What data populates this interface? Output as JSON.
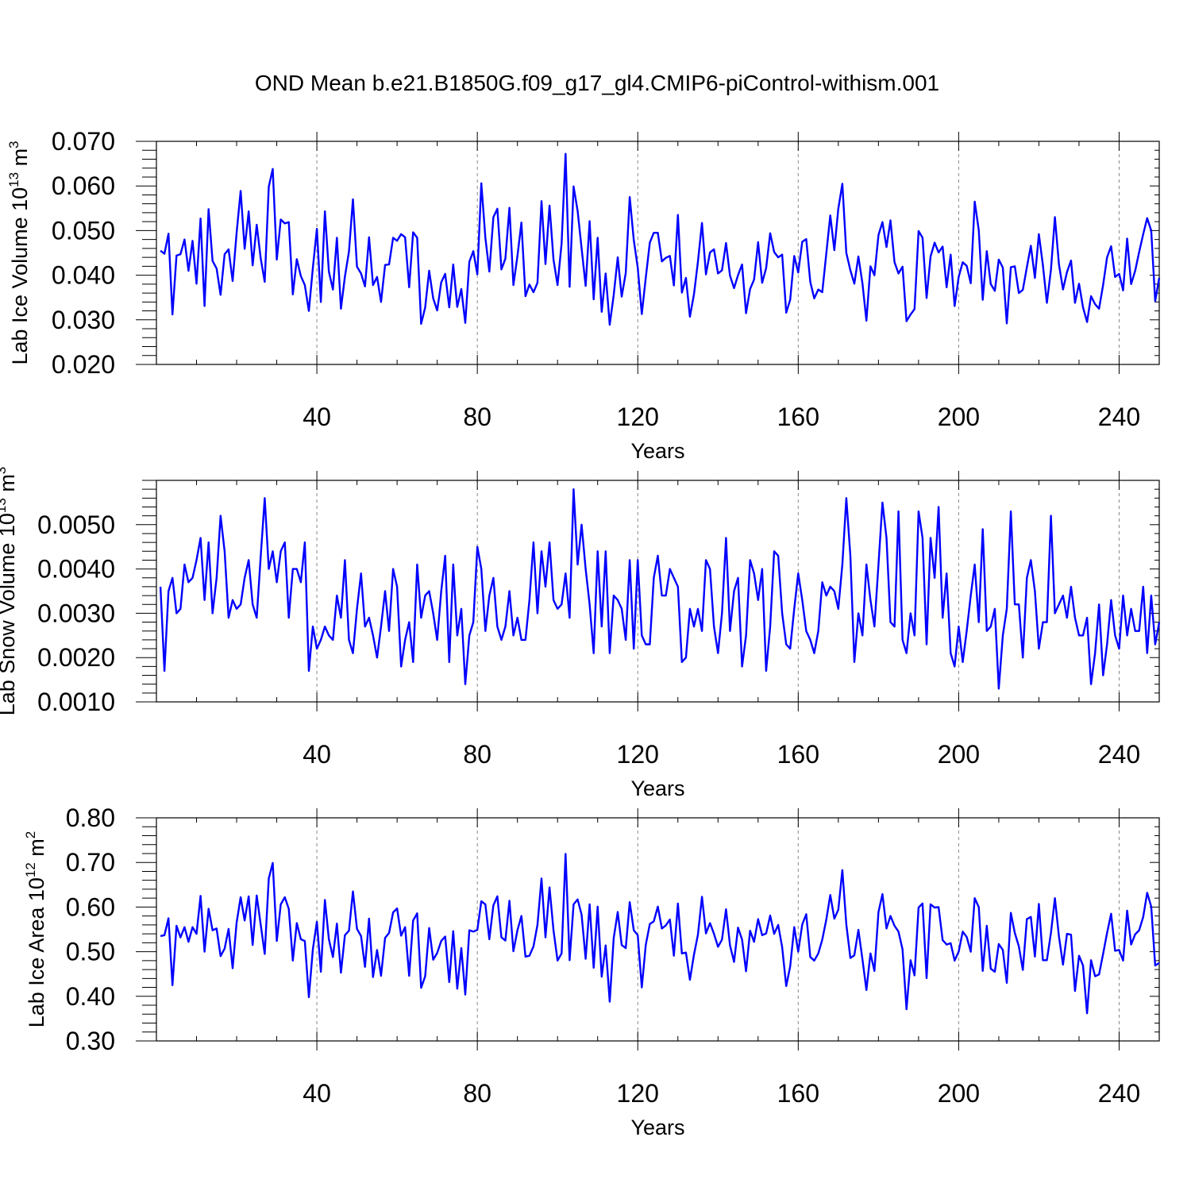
{
  "title": "OND Mean b.e21.B1850G.f09_g17_gl4.CMIP6-piControl-withism.001",
  "series_color": "#0000ff",
  "chart_data": [
    {
      "type": "line",
      "title": "OND Mean b.e21.B1850G.f09_g17_gl4.CMIP6-piControl-withism.001",
      "xlabel": "Years",
      "ylabel_text": "Lab Ice Volume 10",
      "ylabel_exp": "13",
      "ylabel_unit": " m",
      "ylabel_unit_exp": "3",
      "xlim": [
        0,
        250
      ],
      "ylim": [
        0.02,
        0.07
      ],
      "xticks": [
        40,
        80,
        120,
        160,
        200,
        240
      ],
      "yticks": [
        "0.020",
        "0.030",
        "0.040",
        "0.050",
        "0.060",
        "0.070"
      ],
      "grid": "vertical dashed at major x ticks",
      "x_start": 1,
      "values": [
        0.0455,
        0.0448,
        0.0493,
        0.0312,
        0.0444,
        0.0447,
        0.048,
        0.041,
        0.0477,
        0.0381,
        0.0527,
        0.0331,
        0.0548,
        0.0432,
        0.0415,
        0.0356,
        0.0447,
        0.0458,
        0.0387,
        0.0495,
        0.0589,
        0.0459,
        0.0543,
        0.0422,
        0.0513,
        0.0437,
        0.0385,
        0.0598,
        0.0638,
        0.0435,
        0.0525,
        0.0516,
        0.0519,
        0.0357,
        0.0436,
        0.0398,
        0.0378,
        0.032,
        0.0416,
        0.0504,
        0.034,
        0.0543,
        0.0408,
        0.0368,
        0.0484,
        0.0325,
        0.0397,
        0.0453,
        0.057,
        0.0419,
        0.0404,
        0.0375,
        0.0485,
        0.0378,
        0.0396,
        0.034,
        0.0423,
        0.0424,
        0.0484,
        0.0477,
        0.0492,
        0.0485,
        0.0373,
        0.0496,
        0.0484,
        0.0291,
        0.0328,
        0.041,
        0.0348,
        0.0321,
        0.0384,
        0.0403,
        0.0328,
        0.0424,
        0.0329,
        0.0369,
        0.0293,
        0.043,
        0.0454,
        0.0402,
        0.0606,
        0.0484,
        0.0408,
        0.053,
        0.0549,
        0.0413,
        0.0437,
        0.0551,
        0.0378,
        0.0443,
        0.0518,
        0.0353,
        0.0379,
        0.0362,
        0.0383,
        0.0566,
        0.0425,
        0.0556,
        0.0435,
        0.0378,
        0.0471,
        0.0672,
        0.0374,
        0.0599,
        0.0544,
        0.046,
        0.0376,
        0.0521,
        0.0346,
        0.0484,
        0.0318,
        0.0404,
        0.0289,
        0.0355,
        0.044,
        0.0352,
        0.0405,
        0.0575,
        0.0479,
        0.0417,
        0.0313,
        0.0394,
        0.0473,
        0.0495,
        0.0495,
        0.0431,
        0.0439,
        0.0443,
        0.0377,
        0.0535,
        0.0361,
        0.0394,
        0.0307,
        0.0357,
        0.043,
        0.0517,
        0.0402,
        0.0451,
        0.0458,
        0.0404,
        0.0411,
        0.0472,
        0.0399,
        0.0371,
        0.04,
        0.0424,
        0.0315,
        0.0369,
        0.039,
        0.0474,
        0.0383,
        0.0416,
        0.0494,
        0.0452,
        0.044,
        0.0446,
        0.0316,
        0.0345,
        0.0443,
        0.0406,
        0.0475,
        0.0481,
        0.0385,
        0.0348,
        0.0368,
        0.0362,
        0.0449,
        0.0534,
        0.0456,
        0.0549,
        0.0605,
        0.045,
        0.0411,
        0.0381,
        0.0442,
        0.0382,
        0.0298,
        0.042,
        0.04,
        0.049,
        0.0519,
        0.0463,
        0.0523,
        0.0429,
        0.0404,
        0.0419,
        0.0297,
        0.0312,
        0.0324,
        0.0499,
        0.0484,
        0.0349,
        0.0442,
        0.0473,
        0.0451,
        0.0464,
        0.0373,
        0.0446,
        0.0331,
        0.0396,
        0.0429,
        0.0421,
        0.0382,
        0.0565,
        0.0501,
        0.0345,
        0.0454,
        0.038,
        0.0365,
        0.0435,
        0.0417,
        0.0292,
        0.0418,
        0.042,
        0.036,
        0.0367,
        0.0418,
        0.0466,
        0.0394,
        0.0492,
        0.0422,
        0.0338,
        0.0412,
        0.053,
        0.0424,
        0.0368,
        0.0407,
        0.0433,
        0.0338,
        0.0381,
        0.0328,
        0.0295,
        0.0353,
        0.0335,
        0.0325,
        0.0378,
        0.044,
        0.0465,
        0.0396,
        0.0403,
        0.0366,
        0.0482,
        0.038,
        0.041,
        0.0452,
        0.0492,
        0.0528,
        0.05,
        0.0342,
        0.0394
      ]
    },
    {
      "type": "line",
      "xlabel": "Years",
      "ylabel_text": "Lab Snow Volume 10",
      "ylabel_exp": "13",
      "ylabel_unit": " m",
      "ylabel_unit_exp": "3",
      "xlim": [
        0,
        250
      ],
      "ylim": [
        0.001,
        0.006
      ],
      "xticks": [
        40,
        80,
        120,
        160,
        200,
        240
      ],
      "yticks": [
        "0.0010",
        "0.0020",
        "0.0030",
        "0.0040",
        "0.0050"
      ],
      "grid": "vertical dashed at major x ticks",
      "x_start": 1,
      "values": [
        0.0036,
        0.0017,
        0.0035,
        0.0038,
        0.003,
        0.0031,
        0.0041,
        0.0037,
        0.0038,
        0.0042,
        0.0047,
        0.0033,
        0.0046,
        0.003,
        0.0038,
        0.0052,
        0.0044,
        0.0029,
        0.0033,
        0.0031,
        0.0032,
        0.0038,
        0.0042,
        0.0032,
        0.0029,
        0.0043,
        0.0056,
        0.004,
        0.0044,
        0.0037,
        0.0044,
        0.0046,
        0.0029,
        0.004,
        0.004,
        0.0037,
        0.0046,
        0.0017,
        0.0027,
        0.0022,
        0.0024,
        0.0027,
        0.0025,
        0.0024,
        0.0034,
        0.0029,
        0.0042,
        0.0024,
        0.0021,
        0.0031,
        0.0039,
        0.0027,
        0.0029,
        0.0025,
        0.002,
        0.0027,
        0.0035,
        0.0026,
        0.004,
        0.0036,
        0.0018,
        0.0024,
        0.0028,
        0.0019,
        0.0041,
        0.0029,
        0.0034,
        0.0035,
        0.003,
        0.0024,
        0.0035,
        0.0043,
        0.0019,
        0.0041,
        0.0025,
        0.0031,
        0.0014,
        0.0025,
        0.0028,
        0.0045,
        0.004,
        0.0026,
        0.0034,
        0.0038,
        0.0027,
        0.0024,
        0.0027,
        0.0035,
        0.0025,
        0.0029,
        0.0024,
        0.0024,
        0.0033,
        0.0046,
        0.003,
        0.0044,
        0.0036,
        0.0046,
        0.0033,
        0.0031,
        0.0032,
        0.0039,
        0.0029,
        0.0058,
        0.0041,
        0.005,
        0.004,
        0.0032,
        0.0021,
        0.0044,
        0.0027,
        0.0044,
        0.0021,
        0.0034,
        0.0033,
        0.0031,
        0.0024,
        0.0042,
        0.0022,
        0.0042,
        0.0025,
        0.0023,
        0.0023,
        0.0038,
        0.0043,
        0.0034,
        0.0034,
        0.004,
        0.0038,
        0.0036,
        0.0019,
        0.002,
        0.0031,
        0.0027,
        0.0031,
        0.0026,
        0.0042,
        0.004,
        0.0027,
        0.0021,
        0.003,
        0.0047,
        0.0026,
        0.0035,
        0.0038,
        0.0018,
        0.0025,
        0.0042,
        0.0039,
        0.0033,
        0.004,
        0.0017,
        0.0027,
        0.0044,
        0.0043,
        0.003,
        0.0023,
        0.0022,
        0.0031,
        0.0039,
        0.0033,
        0.0026,
        0.0024,
        0.0021,
        0.0026,
        0.0037,
        0.0034,
        0.0036,
        0.0035,
        0.0031,
        0.0041,
        0.0056,
        0.0043,
        0.0019,
        0.003,
        0.0025,
        0.0041,
        0.0033,
        0.0027,
        0.0041,
        0.0055,
        0.0047,
        0.0028,
        0.0027,
        0.0053,
        0.0024,
        0.0021,
        0.003,
        0.0025,
        0.0053,
        0.0047,
        0.0023,
        0.0047,
        0.0038,
        0.0054,
        0.0029,
        0.0039,
        0.0021,
        0.0018,
        0.0027,
        0.0019,
        0.0026,
        0.0034,
        0.0041,
        0.0028,
        0.0049,
        0.0026,
        0.0027,
        0.0031,
        0.0013,
        0.0025,
        0.0031,
        0.0053,
        0.0032,
        0.0032,
        0.002,
        0.0038,
        0.0042,
        0.0035,
        0.0022,
        0.0028,
        0.0028,
        0.0052,
        0.003,
        0.0032,
        0.0034,
        0.0029,
        0.0036,
        0.0029,
        0.0025,
        0.0025,
        0.0029,
        0.0014,
        0.0021,
        0.0032,
        0.0016,
        0.0023,
        0.0033,
        0.0025,
        0.0022,
        0.0034,
        0.0025,
        0.0031,
        0.0026,
        0.0026,
        0.0036,
        0.0021,
        0.0034,
        0.0023,
        0.0028
      ]
    },
    {
      "type": "line",
      "xlabel": "Years",
      "ylabel_text": "Lab Ice Area 10",
      "ylabel_exp": "12",
      "ylabel_unit": " m",
      "ylabel_unit_exp": "2",
      "xlim": [
        0,
        250
      ],
      "ylim": [
        0.3,
        0.8
      ],
      "xticks": [
        40,
        80,
        120,
        160,
        200,
        240
      ],
      "yticks": [
        "0.30",
        "0.40",
        "0.50",
        "0.60",
        "0.70",
        "0.80"
      ],
      "grid": "vertical dashed at major x ticks",
      "x_start": 1,
      "values": [
        0.535,
        0.537,
        0.575,
        0.425,
        0.558,
        0.532,
        0.555,
        0.522,
        0.555,
        0.54,
        0.625,
        0.5,
        0.596,
        0.548,
        0.552,
        0.49,
        0.507,
        0.551,
        0.463,
        0.565,
        0.622,
        0.57,
        0.624,
        0.515,
        0.626,
        0.56,
        0.495,
        0.664,
        0.699,
        0.524,
        0.606,
        0.622,
        0.596,
        0.48,
        0.564,
        0.528,
        0.524,
        0.398,
        0.505,
        0.567,
        0.455,
        0.616,
        0.528,
        0.488,
        0.563,
        0.453,
        0.537,
        0.547,
        0.635,
        0.551,
        0.535,
        0.466,
        0.574,
        0.443,
        0.504,
        0.446,
        0.531,
        0.542,
        0.588,
        0.597,
        0.536,
        0.555,
        0.446,
        0.57,
        0.586,
        0.419,
        0.445,
        0.553,
        0.482,
        0.497,
        0.524,
        0.534,
        0.432,
        0.546,
        0.417,
        0.508,
        0.404,
        0.548,
        0.545,
        0.549,
        0.613,
        0.606,
        0.528,
        0.604,
        0.624,
        0.532,
        0.525,
        0.614,
        0.501,
        0.548,
        0.58,
        0.489,
        0.491,
        0.512,
        0.56,
        0.664,
        0.532,
        0.644,
        0.548,
        0.48,
        0.496,
        0.719,
        0.481,
        0.606,
        0.617,
        0.583,
        0.484,
        0.606,
        0.464,
        0.601,
        0.444,
        0.514,
        0.388,
        0.53,
        0.589,
        0.515,
        0.508,
        0.611,
        0.548,
        0.537,
        0.42,
        0.515,
        0.562,
        0.568,
        0.601,
        0.552,
        0.559,
        0.572,
        0.491,
        0.608,
        0.496,
        0.498,
        0.437,
        0.493,
        0.538,
        0.623,
        0.541,
        0.564,
        0.54,
        0.511,
        0.527,
        0.595,
        0.514,
        0.477,
        0.554,
        0.527,
        0.456,
        0.547,
        0.522,
        0.573,
        0.537,
        0.541,
        0.581,
        0.54,
        0.56,
        0.51,
        0.423,
        0.467,
        0.555,
        0.5,
        0.561,
        0.584,
        0.488,
        0.48,
        0.496,
        0.527,
        0.572,
        0.627,
        0.574,
        0.594,
        0.683,
        0.561,
        0.486,
        0.492,
        0.549,
        0.483,
        0.414,
        0.496,
        0.457,
        0.589,
        0.629,
        0.552,
        0.58,
        0.558,
        0.545,
        0.505,
        0.371,
        0.481,
        0.447,
        0.599,
        0.608,
        0.441,
        0.606,
        0.599,
        0.6,
        0.526,
        0.516,
        0.519,
        0.48,
        0.5,
        0.545,
        0.533,
        0.5,
        0.62,
        0.6,
        0.457,
        0.558,
        0.462,
        0.455,
        0.517,
        0.504,
        0.43,
        0.587,
        0.542,
        0.512,
        0.459,
        0.573,
        0.578,
        0.489,
        0.607,
        0.481,
        0.481,
        0.542,
        0.62,
        0.534,
        0.471,
        0.54,
        0.538,
        0.412,
        0.491,
        0.469,
        0.362,
        0.481,
        0.445,
        0.449,
        0.495,
        0.542,
        0.585,
        0.502,
        0.504,
        0.48,
        0.592,
        0.516,
        0.539,
        0.548,
        0.578,
        0.632,
        0.601,
        0.469,
        0.475
      ]
    }
  ]
}
